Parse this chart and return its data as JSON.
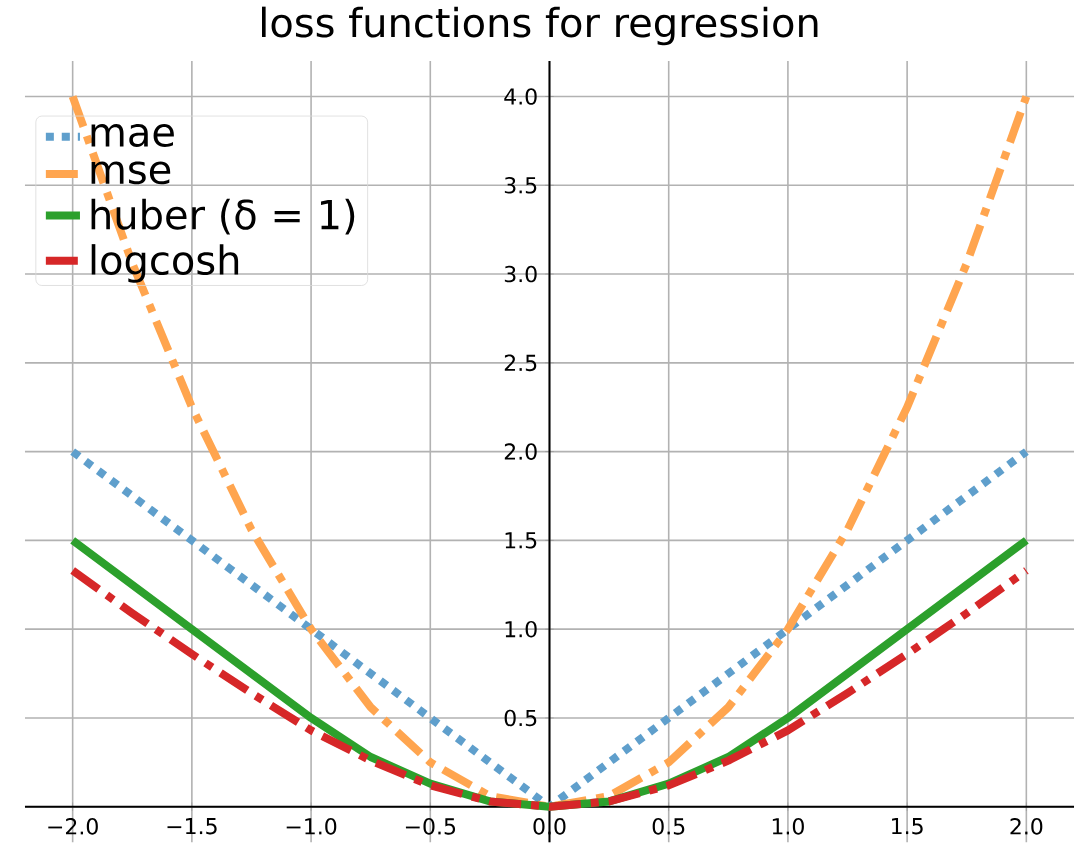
{
  "chart_data": {
    "type": "line",
    "title": "loss functions for regression",
    "x": [
      -2,
      -1.75,
      -1.5,
      -1.25,
      -1,
      -0.75,
      -0.5,
      -0.25,
      0,
      0.25,
      0.5,
      0.75,
      1,
      1.25,
      1.5,
      1.75,
      2
    ],
    "series": [
      {
        "name": "mae",
        "color": "#5f9fcc",
        "line_style": "dotted",
        "values": [
          2,
          1.75,
          1.5,
          1.25,
          1,
          0.75,
          0.5,
          0.25,
          0,
          0.25,
          0.5,
          0.75,
          1,
          1.25,
          1.5,
          1.75,
          2
        ]
      },
      {
        "name": "mse",
        "color": "#ffa54f",
        "line_style": "dashdot",
        "values": [
          4,
          3.06,
          2.25,
          1.56,
          1,
          0.56,
          0.25,
          0.06,
          0,
          0.06,
          0.25,
          0.56,
          1,
          1.56,
          2.25,
          3.06,
          4
        ]
      },
      {
        "name": "huber (δ = 1)",
        "color": "#2ca02c",
        "line_style": "solid",
        "values": [
          1.5,
          1.25,
          1,
          0.75,
          0.5,
          0.28,
          0.13,
          0.03,
          0,
          0.03,
          0.13,
          0.28,
          0.5,
          0.75,
          1,
          1.25,
          1.5
        ]
      },
      {
        "name": "logcosh",
        "color": "#d62728",
        "line_style": "dashdot",
        "values": [
          1.33,
          1.09,
          0.86,
          0.64,
          0.43,
          0.26,
          0.12,
          0.03,
          0,
          0.03,
          0.12,
          0.26,
          0.43,
          0.64,
          0.86,
          1.09,
          1.33
        ]
      }
    ],
    "xlim": [
      -2.2,
      2.2
    ],
    "ylim": [
      -0.2,
      4.2
    ],
    "xticks": [
      {
        "value": -2,
        "label": "−2.0"
      },
      {
        "value": -1.5,
        "label": "−1.5"
      },
      {
        "value": -1,
        "label": "−1.0"
      },
      {
        "value": -0.5,
        "label": "−0.5"
      },
      {
        "value": 0,
        "label": "0.0"
      },
      {
        "value": 0.5,
        "label": "0.5"
      },
      {
        "value": 1,
        "label": "1.0"
      },
      {
        "value": 1.5,
        "label": "1.5"
      },
      {
        "value": 2,
        "label": "2.0"
      }
    ],
    "yticks": [
      {
        "value": 0,
        "label": null
      },
      {
        "value": 0.5,
        "label": "0.5"
      },
      {
        "value": 1,
        "label": "1.0"
      },
      {
        "value": 1.5,
        "label": "1.5"
      },
      {
        "value": 2,
        "label": "2.0"
      },
      {
        "value": 2.5,
        "label": "2.5"
      },
      {
        "value": 3,
        "label": "3.0"
      },
      {
        "value": 3.5,
        "label": "3.5"
      },
      {
        "value": 4,
        "label": "4.0"
      }
    ],
    "grid": true,
    "legend": "top left"
  }
}
